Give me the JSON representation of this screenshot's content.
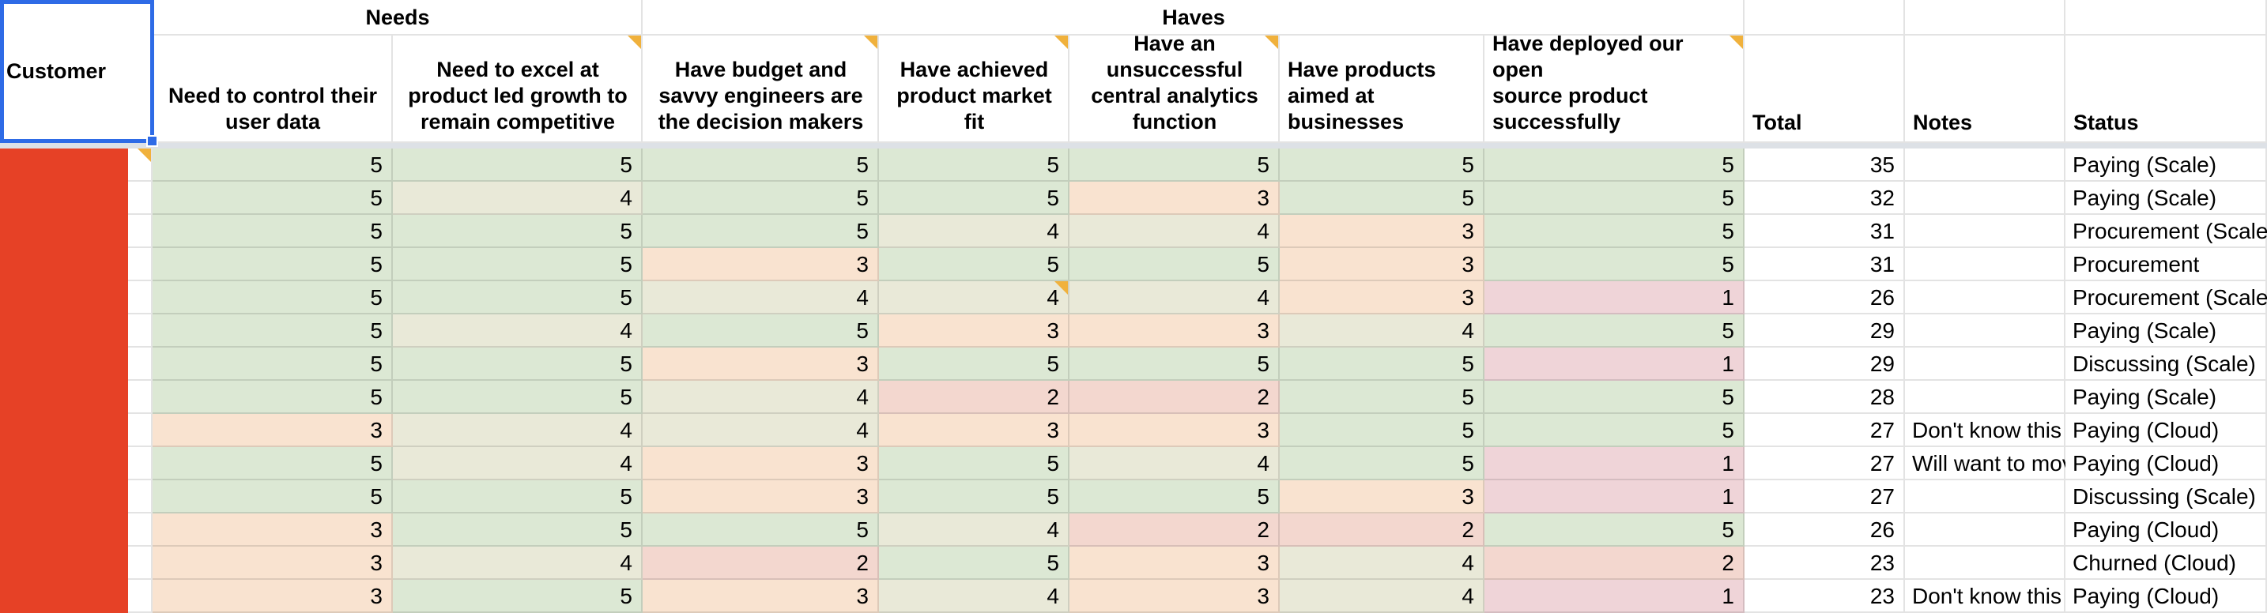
{
  "sheet": {
    "corner_label": "Customer",
    "group_headers": {
      "needs": "Needs",
      "haves": "Haves"
    },
    "columns": [
      {
        "label": "Need to control their\nuser data",
        "has_note": false
      },
      {
        "label": "Need to excel at\nproduct led growth to\nremain competitive",
        "has_note": true
      },
      {
        "label": "Have budget and\nsavvy engineers are\nthe decision makers",
        "has_note": true
      },
      {
        "label": "Have achieved\nproduct market\nfit",
        "has_note": true
      },
      {
        "label": "Have an\nunsuccessful\ncentral analytics\nfunction",
        "has_note": true
      },
      {
        "label": "Have products\naimed at\nbusinesses",
        "has_note": false
      },
      {
        "label": "Have deployed our open\nsource product\nsuccessfully",
        "has_note": true
      }
    ],
    "extra_headers": {
      "total": "Total",
      "notes": "Notes",
      "status": "Status"
    },
    "rows": [
      {
        "scores": [
          5,
          5,
          5,
          5,
          5,
          5,
          5
        ],
        "total": 35,
        "note": "",
        "status": "Paying (Scale)",
        "customer_note": true,
        "note_cols": []
      },
      {
        "scores": [
          5,
          4,
          5,
          5,
          3,
          5,
          5
        ],
        "total": 32,
        "note": "",
        "status": "Paying (Scale)",
        "customer_note": false,
        "note_cols": []
      },
      {
        "scores": [
          5,
          5,
          5,
          4,
          4,
          3,
          5
        ],
        "total": 31,
        "note": "",
        "status": "Procurement (Scale)",
        "customer_note": false,
        "note_cols": []
      },
      {
        "scores": [
          5,
          5,
          3,
          5,
          5,
          3,
          5
        ],
        "total": 31,
        "note": "",
        "status": "Procurement",
        "customer_note": false,
        "note_cols": []
      },
      {
        "scores": [
          5,
          5,
          4,
          4,
          4,
          3,
          1
        ],
        "total": 26,
        "note": "",
        "status": "Procurement (Scale)",
        "customer_note": false,
        "note_cols": [
          3
        ]
      },
      {
        "scores": [
          5,
          4,
          5,
          3,
          3,
          4,
          5
        ],
        "total": 29,
        "note": "",
        "status": "Paying (Scale)",
        "customer_note": false,
        "note_cols": []
      },
      {
        "scores": [
          5,
          5,
          3,
          5,
          5,
          5,
          1
        ],
        "total": 29,
        "note": "",
        "status": "Discussing (Scale)",
        "customer_note": false,
        "note_cols": []
      },
      {
        "scores": [
          5,
          5,
          4,
          2,
          2,
          5,
          5
        ],
        "total": 28,
        "note": "",
        "status": "Paying (Scale)",
        "customer_note": false,
        "note_cols": []
      },
      {
        "scores": [
          3,
          4,
          4,
          3,
          3,
          5,
          5
        ],
        "total": 27,
        "note": "Don't know this c",
        "status": "Paying (Cloud)",
        "customer_note": false,
        "note_cols": []
      },
      {
        "scores": [
          5,
          4,
          3,
          5,
          4,
          5,
          1
        ],
        "total": 27,
        "note": "Will want to mov",
        "status": "Paying (Cloud)",
        "customer_note": false,
        "note_cols": []
      },
      {
        "scores": [
          5,
          5,
          3,
          5,
          5,
          3,
          1
        ],
        "total": 27,
        "note": "",
        "status": "Discussing (Scale)",
        "customer_note": false,
        "note_cols": []
      },
      {
        "scores": [
          3,
          5,
          5,
          4,
          2,
          2,
          5
        ],
        "total": 26,
        "note": "",
        "status": "Paying (Cloud)",
        "customer_note": false,
        "note_cols": []
      },
      {
        "scores": [
          3,
          4,
          2,
          5,
          3,
          4,
          2
        ],
        "total": 23,
        "note": "",
        "status": "Churned (Cloud)",
        "customer_note": false,
        "note_cols": []
      },
      {
        "scores": [
          3,
          5,
          3,
          4,
          3,
          4,
          1
        ],
        "total": 23,
        "note": "Don't know this c",
        "status": "Paying (Cloud)",
        "customer_note": false,
        "note_cols": []
      }
    ],
    "colors": {
      "score_5": "#dce8d4",
      "score_4": "#e9e9d8",
      "score_3": "#f9e3d0",
      "score_2": "#f3d7cf",
      "score_1": "#efd4d8",
      "selection_blue": "#2e6be6",
      "redaction_red": "#e64126",
      "note_flag_orange": "#f0b13c",
      "frozen_divider_gray": "#dde1e6"
    }
  }
}
